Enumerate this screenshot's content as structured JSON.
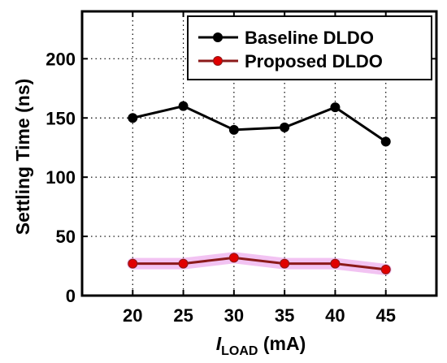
{
  "chart_data": {
    "type": "line",
    "x": [
      20,
      25,
      30,
      35,
      40,
      45
    ],
    "xlim": [
      15,
      50
    ],
    "ylim": [
      0,
      240
    ],
    "xticks": [
      20,
      25,
      30,
      35,
      40,
      45
    ],
    "yticks": [
      0,
      50,
      100,
      150,
      200
    ],
    "xlabel": {
      "italic": "I",
      "subscript": "LOAD",
      "unit": " (mA)"
    },
    "ylabel": "Settling Time (ns)",
    "grid": true,
    "legend_position": "top-right",
    "series": [
      {
        "name": "Baseline DLDO",
        "color": "#000000",
        "marker_color": "#000000",
        "values": [
          150,
          160,
          140,
          142,
          159,
          130
        ]
      },
      {
        "name": "Proposed DLDO",
        "color": "#8b1a1a",
        "marker_color": "#e00000",
        "highlight": "#f0b8f0",
        "values": [
          27,
          27,
          32,
          27,
          27,
          22
        ]
      }
    ]
  }
}
